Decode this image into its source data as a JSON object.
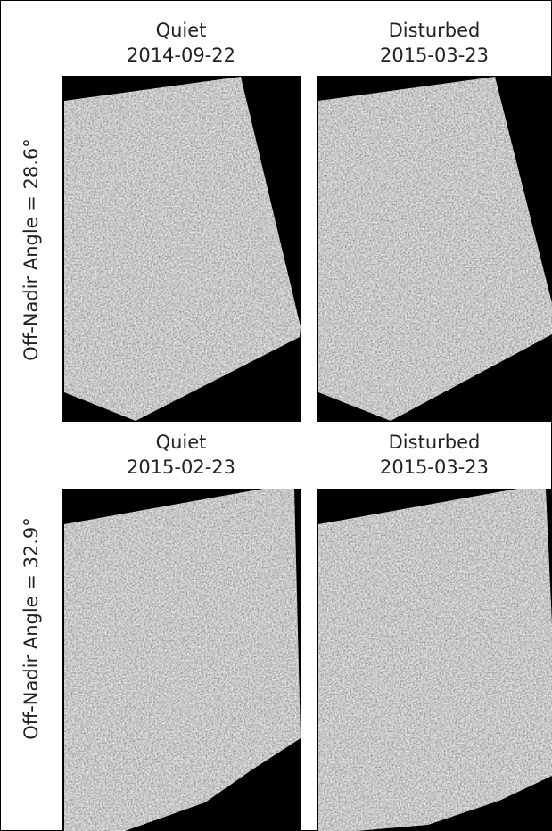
{
  "rows": [
    {
      "label": "Off-Nadir Angle = 28.6°",
      "panels": [
        {
          "condition": "Quiet",
          "date": "2014-09-22"
        },
        {
          "condition": "Disturbed",
          "date": "2015-03-23"
        }
      ]
    },
    {
      "label": "Off-Nadir Angle = 32.9°",
      "panels": [
        {
          "condition": "Quiet",
          "date": "2015-02-23"
        },
        {
          "condition": "Disturbed",
          "date": "2015-03-23"
        }
      ]
    }
  ]
}
